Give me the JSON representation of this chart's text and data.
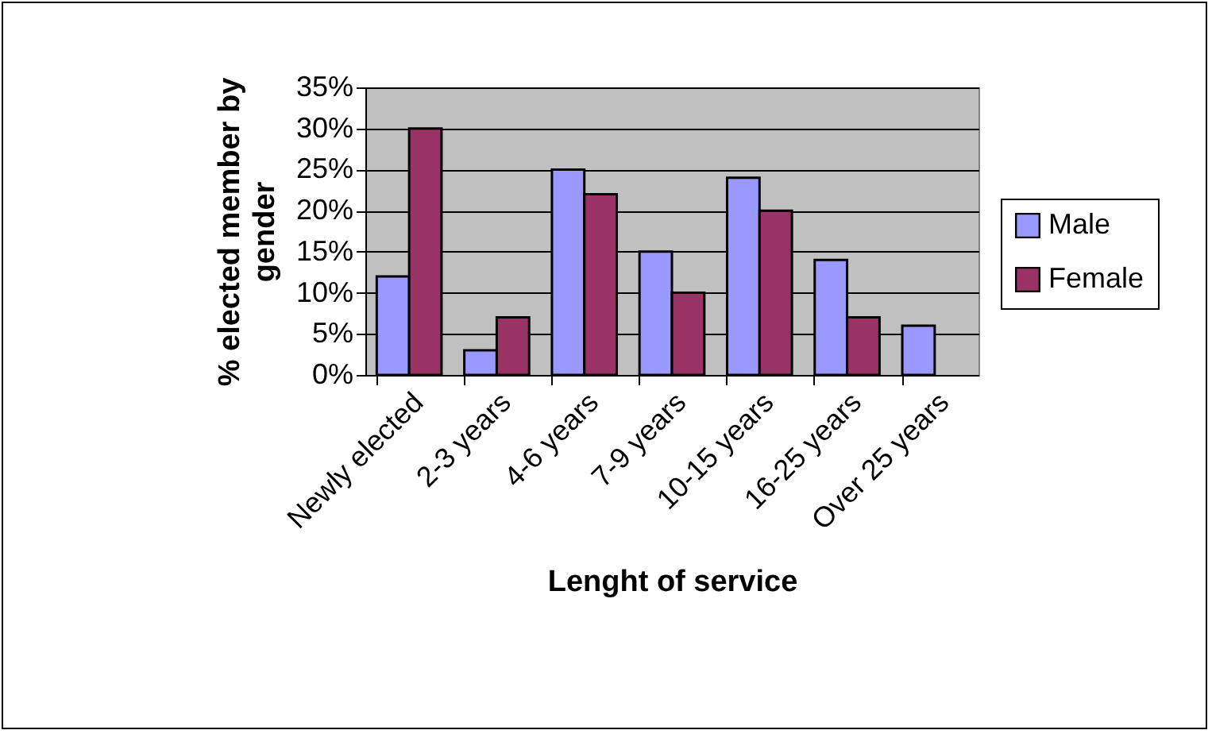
{
  "chart_data": {
    "type": "bar",
    "xlabel": "Lenght of service",
    "ylabel": "% elected member by gender",
    "categories": [
      "Newly elected",
      "2-3 years",
      "4-6 years",
      "7-9 years",
      "10-15 years",
      "16-25 years",
      "Over 25 years"
    ],
    "series": [
      {
        "name": "Male",
        "color": "#9999ff",
        "values": [
          12,
          3,
          25,
          15,
          24,
          14,
          6
        ]
      },
      {
        "name": "Female",
        "color": "#993366",
        "values": [
          30,
          7,
          22,
          10,
          20,
          7,
          null
        ]
      }
    ],
    "ylim": [
      0,
      35
    ],
    "yticks": [
      {
        "value": 0,
        "label": "0%"
      },
      {
        "value": 5,
        "label": "5%"
      },
      {
        "value": 10,
        "label": "10%"
      },
      {
        "value": 15,
        "label": "15%"
      },
      {
        "value": 20,
        "label": "20%"
      },
      {
        "value": 25,
        "label": "25%"
      },
      {
        "value": 30,
        "label": "30%"
      },
      {
        "value": 35,
        "label": "35%"
      }
    ],
    "grid": "y",
    "legend": "right"
  }
}
